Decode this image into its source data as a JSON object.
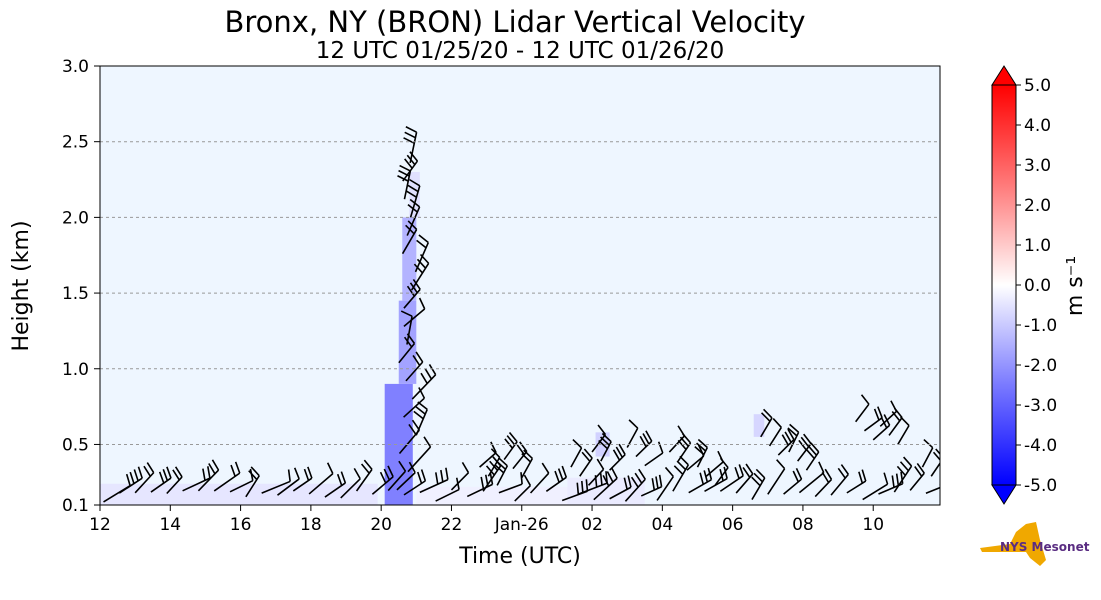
{
  "chart_data": {
    "type": "heatmap",
    "title": "Bronx, NY (BRON) Lidar Vertical Velocity",
    "subtitle": "12 UTC 01/25/20 - 12 UTC 01/26/20",
    "xlabel": "Time (UTC)",
    "ylabel": "Height (km)",
    "x_ticks": [
      "12",
      "14",
      "16",
      "18",
      "20",
      "22",
      "Jan-26",
      "02",
      "04",
      "06",
      "08",
      "10"
    ],
    "x_tick_hours": [
      12,
      14,
      16,
      18,
      20,
      22,
      24,
      26,
      28,
      30,
      32,
      34
    ],
    "xlim_hours": [
      12,
      35.9
    ],
    "y_ticks": [
      "0.1",
      "0.5",
      "1.0",
      "1.5",
      "2.0",
      "2.5",
      "3.0"
    ],
    "y_tick_values": [
      0.1,
      0.5,
      1.0,
      1.5,
      2.0,
      2.5,
      3.0
    ],
    "ylim": [
      0.1,
      3.0
    ],
    "grid": "horizontal dashed",
    "colorbar": {
      "label": "m s⁻¹",
      "ticks": [
        "5.0",
        "4.0",
        "3.0",
        "2.0",
        "1.0",
        "0.0",
        "-1.0",
        "-2.0",
        "-3.0",
        "-4.0",
        "-5.0"
      ],
      "min": -5.0,
      "max": 5.0,
      "extend": "both"
    },
    "regions": [
      {
        "x0": 12.0,
        "x1": 19.9,
        "y0": 0.1,
        "y1": 0.24,
        "w": -0.5
      },
      {
        "x0": 20.1,
        "x1": 20.9,
        "y0": 0.1,
        "y1": 0.9,
        "w": -2.5
      },
      {
        "x0": 20.5,
        "x1": 21.0,
        "y0": 0.9,
        "y1": 1.45,
        "w": -1.8
      },
      {
        "x0": 20.6,
        "x1": 21.0,
        "y0": 1.45,
        "y1": 2.0,
        "w": -1.5
      },
      {
        "x0": 20.8,
        "x1": 21.1,
        "y0": 2.0,
        "y1": 2.3,
        "w": -0.6
      },
      {
        "x0": 21.0,
        "x1": 25.5,
        "y0": 0.1,
        "y1": 0.22,
        "w": -0.3
      },
      {
        "x0": 25.3,
        "x1": 27.5,
        "y0": 0.1,
        "y1": 0.28,
        "w": -0.4
      },
      {
        "x0": 26.1,
        "x1": 26.5,
        "y0": 0.42,
        "y1": 0.58,
        "w": -0.9
      },
      {
        "x0": 30.6,
        "x1": 30.9,
        "y0": 0.55,
        "y1": 0.7,
        "w": -0.8
      }
    ],
    "logo_text": "NYS Mesonet"
  }
}
